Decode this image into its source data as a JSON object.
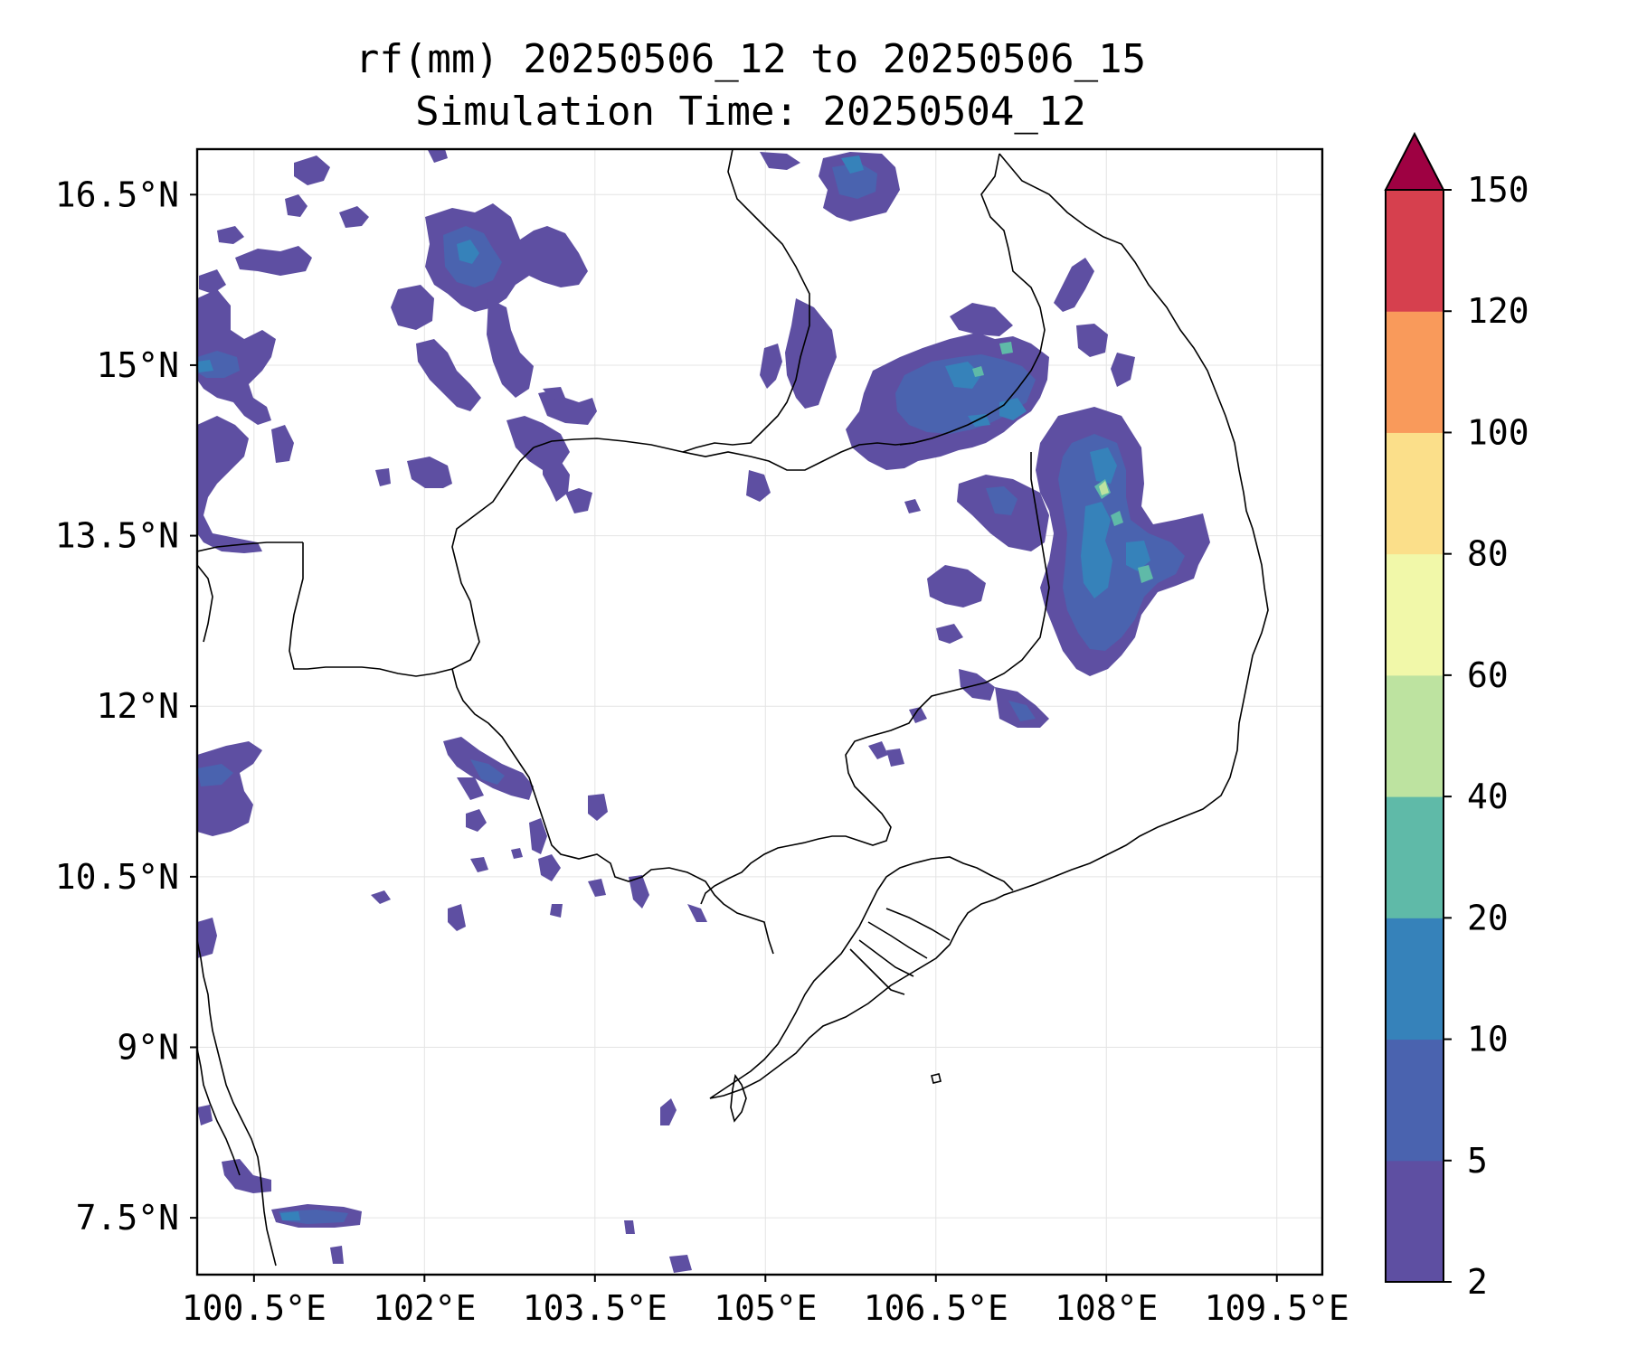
{
  "title": {
    "line1": "rf(mm) 20250506_12 to 20250506_15",
    "line2": "Simulation Time: 20250504_12"
  },
  "map": {
    "extent": {
      "lon_min": 100.0,
      "lon_max": 109.9,
      "lat_min": 7.0,
      "lat_max": 16.9
    },
    "x_ticks": [
      {
        "value": 100.5,
        "label": "100.5°E"
      },
      {
        "value": 102.0,
        "label": "102°E"
      },
      {
        "value": 103.5,
        "label": "103.5°E"
      },
      {
        "value": 105.0,
        "label": "105°E"
      },
      {
        "value": 106.5,
        "label": "106.5°E"
      },
      {
        "value": 108.0,
        "label": "108°E"
      },
      {
        "value": 109.5,
        "label": "109.5°E"
      }
    ],
    "y_ticks": [
      {
        "value": 16.5,
        "label": "16.5°N"
      },
      {
        "value": 15.0,
        "label": "15°N"
      },
      {
        "value": 13.5,
        "label": "13.5°N"
      },
      {
        "value": 12.0,
        "label": "12°N"
      },
      {
        "value": 10.5,
        "label": "10.5°N"
      },
      {
        "value": 9.0,
        "label": "9°N"
      },
      {
        "value": 7.5,
        "label": "7.5°N"
      }
    ],
    "grid": true
  },
  "colorbar": {
    "levels": [
      "2",
      "5",
      "10",
      "20",
      "40",
      "60",
      "80",
      "100",
      "120",
      "150"
    ],
    "colors": [
      "#5e4fa2",
      "#4a63af",
      "#3682ba",
      "#5fbaa8",
      "#bde3a0",
      "#f1f8a9",
      "#fbdf8a",
      "#f99a5b",
      "#d6404e"
    ],
    "extend_color": "#9e0142",
    "extend": "max"
  },
  "rain_colors": {
    "l1": "#5e4fa2",
    "l2": "#4a63af",
    "l3": "#3682ba",
    "l4": "#5fbaa8",
    "l5": "#bde3a0"
  }
}
